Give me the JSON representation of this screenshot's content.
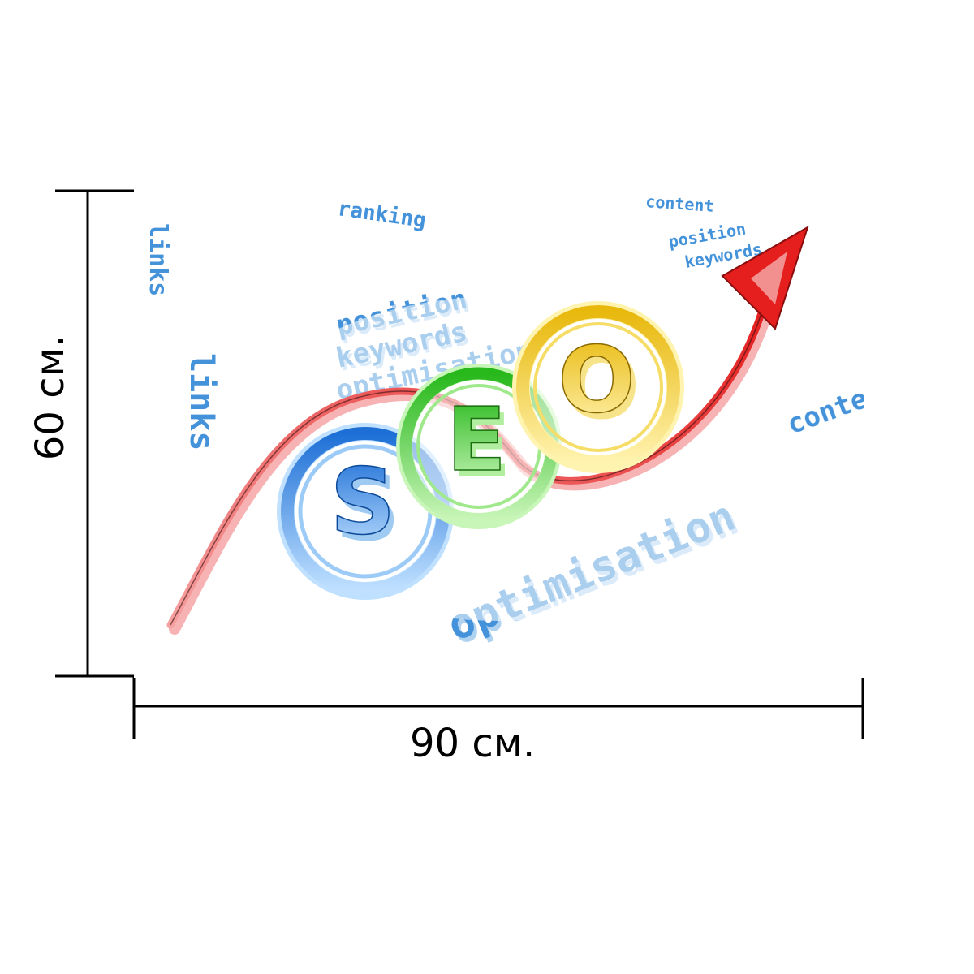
{
  "dimensions": {
    "width_label": "90 см.",
    "height_label": "60 см."
  },
  "artwork": {
    "logo_letters": [
      "S",
      "E",
      "O"
    ],
    "background_words": [
      "position",
      "keywords",
      "optimisation",
      "ranking",
      "content",
      "links",
      "position",
      "keywords",
      "optimisation",
      "content",
      "links"
    ],
    "colors": {
      "s_ring": "#3b8fe6",
      "e_ring": "#47d62e",
      "o_ring": "#f2d21a",
      "arrow": "#e8302a",
      "words": "#2f86d6"
    }
  }
}
